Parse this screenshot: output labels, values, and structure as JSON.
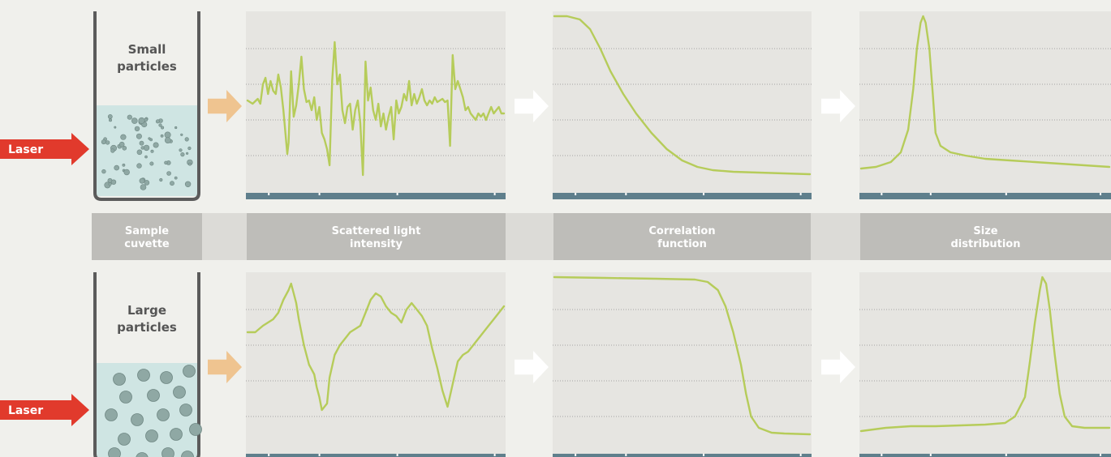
{
  "colors": {
    "background": "#f0f0ec",
    "panel": "#e6e5e1",
    "grid": "#8f8f8f",
    "axis": "#5f7f8c",
    "signal": "#b6cc5a",
    "laser": "#e13a2c",
    "input_arrow": "#efc490",
    "step_arrow": "#ffffff",
    "header": "#bebdb9",
    "header_gap": "#dcdbd7",
    "cuvette_wall": "#5b5b5b",
    "liquid": "#cfe5e3",
    "particle": "#8fa8a4"
  },
  "laser_label": "Laser",
  "rows": [
    {
      "id": "small",
      "cuvette_label": [
        "Small",
        "particles"
      ],
      "intensity_trace": [
        [
          0,
          0.48
        ],
        [
          0.02,
          0.46
        ],
        [
          0.04,
          0.49
        ],
        [
          0.05,
          0.46
        ],
        [
          0.06,
          0.58
        ],
        [
          0.07,
          0.62
        ],
        [
          0.08,
          0.52
        ],
        [
          0.09,
          0.6
        ],
        [
          0.1,
          0.54
        ],
        [
          0.11,
          0.52
        ],
        [
          0.12,
          0.64
        ],
        [
          0.13,
          0.56
        ],
        [
          0.14,
          0.42
        ],
        [
          0.155,
          0.15
        ],
        [
          0.16,
          0.22
        ],
        [
          0.17,
          0.66
        ],
        [
          0.18,
          0.38
        ],
        [
          0.19,
          0.45
        ],
        [
          0.2,
          0.58
        ],
        [
          0.21,
          0.75
        ],
        [
          0.22,
          0.55
        ],
        [
          0.23,
          0.47
        ],
        [
          0.24,
          0.48
        ],
        [
          0.25,
          0.42
        ],
        [
          0.26,
          0.5
        ],
        [
          0.27,
          0.36
        ],
        [
          0.28,
          0.44
        ],
        [
          0.29,
          0.28
        ],
        [
          0.3,
          0.24
        ],
        [
          0.31,
          0.18
        ],
        [
          0.32,
          0.08
        ],
        [
          0.33,
          0.6
        ],
        [
          0.34,
          0.84
        ],
        [
          0.35,
          0.58
        ],
        [
          0.36,
          0.64
        ],
        [
          0.37,
          0.42
        ],
        [
          0.38,
          0.34
        ],
        [
          0.39,
          0.44
        ],
        [
          0.4,
          0.46
        ],
        [
          0.41,
          0.3
        ],
        [
          0.42,
          0.42
        ],
        [
          0.43,
          0.48
        ],
        [
          0.44,
          0.34
        ],
        [
          0.45,
          0.02
        ],
        [
          0.46,
          0.72
        ],
        [
          0.47,
          0.48
        ],
        [
          0.48,
          0.56
        ],
        [
          0.49,
          0.42
        ],
        [
          0.5,
          0.36
        ],
        [
          0.51,
          0.46
        ],
        [
          0.52,
          0.32
        ],
        [
          0.53,
          0.4
        ],
        [
          0.54,
          0.3
        ],
        [
          0.55,
          0.38
        ],
        [
          0.56,
          0.44
        ],
        [
          0.57,
          0.24
        ],
        [
          0.58,
          0.48
        ],
        [
          0.59,
          0.4
        ],
        [
          0.6,
          0.44
        ],
        [
          0.61,
          0.52
        ],
        [
          0.62,
          0.48
        ],
        [
          0.63,
          0.6
        ],
        [
          0.64,
          0.45
        ],
        [
          0.65,
          0.52
        ],
        [
          0.66,
          0.46
        ],
        [
          0.67,
          0.5
        ],
        [
          0.68,
          0.55
        ],
        [
          0.69,
          0.48
        ],
        [
          0.7,
          0.45
        ],
        [
          0.71,
          0.48
        ],
        [
          0.72,
          0.46
        ],
        [
          0.73,
          0.5
        ],
        [
          0.74,
          0.47
        ],
        [
          0.75,
          0.48
        ],
        [
          0.76,
          0.49
        ],
        [
          0.77,
          0.47
        ],
        [
          0.78,
          0.48
        ],
        [
          0.79,
          0.2
        ],
        [
          0.8,
          0.76
        ],
        [
          0.81,
          0.55
        ],
        [
          0.82,
          0.6
        ],
        [
          0.83,
          0.55
        ],
        [
          0.84,
          0.5
        ],
        [
          0.85,
          0.42
        ],
        [
          0.86,
          0.44
        ],
        [
          0.87,
          0.4
        ],
        [
          0.88,
          0.38
        ],
        [
          0.89,
          0.36
        ],
        [
          0.9,
          0.4
        ],
        [
          0.91,
          0.38
        ],
        [
          0.92,
          0.4
        ],
        [
          0.93,
          0.36
        ],
        [
          0.94,
          0.4
        ],
        [
          0.95,
          0.44
        ],
        [
          0.96,
          0.4
        ],
        [
          0.97,
          0.42
        ],
        [
          0.98,
          0.44
        ],
        [
          0.99,
          0.4
        ],
        [
          1,
          0.4
        ]
      ],
      "correlation_trace": [
        [
          0,
          1
        ],
        [
          0.05,
          1
        ],
        [
          0.1,
          0.98
        ],
        [
          0.14,
          0.92
        ],
        [
          0.18,
          0.8
        ],
        [
          0.22,
          0.66
        ],
        [
          0.27,
          0.52
        ],
        [
          0.32,
          0.4
        ],
        [
          0.38,
          0.28
        ],
        [
          0.44,
          0.18
        ],
        [
          0.5,
          0.11
        ],
        [
          0.56,
          0.07
        ],
        [
          0.62,
          0.05
        ],
        [
          0.7,
          0.04
        ],
        [
          0.8,
          0.035
        ],
        [
          0.9,
          0.03
        ],
        [
          1,
          0.025
        ]
      ],
      "size_trace": [
        [
          0,
          0.06
        ],
        [
          0.06,
          0.07
        ],
        [
          0.12,
          0.1
        ],
        [
          0.16,
          0.16
        ],
        [
          0.19,
          0.3
        ],
        [
          0.21,
          0.55
        ],
        [
          0.225,
          0.8
        ],
        [
          0.24,
          0.96
        ],
        [
          0.25,
          1
        ],
        [
          0.26,
          0.96
        ],
        [
          0.275,
          0.8
        ],
        [
          0.29,
          0.5
        ],
        [
          0.3,
          0.28
        ],
        [
          0.32,
          0.2
        ],
        [
          0.36,
          0.16
        ],
        [
          0.42,
          0.14
        ],
        [
          0.5,
          0.12
        ],
        [
          0.6,
          0.11
        ],
        [
          0.7,
          0.1
        ],
        [
          0.8,
          0.09
        ],
        [
          0.9,
          0.08
        ],
        [
          1,
          0.07
        ]
      ]
    },
    {
      "id": "large",
      "cuvette_label": [
        "Large",
        "particles"
      ],
      "intensity_trace": [
        [
          0,
          0.66
        ],
        [
          0.03,
          0.66
        ],
        [
          0.06,
          0.7
        ],
        [
          0.08,
          0.72
        ],
        [
          0.1,
          0.74
        ],
        [
          0.12,
          0.78
        ],
        [
          0.14,
          0.86
        ],
        [
          0.16,
          0.92
        ],
        [
          0.17,
          0.96
        ],
        [
          0.18,
          0.9
        ],
        [
          0.19,
          0.84
        ],
        [
          0.2,
          0.74
        ],
        [
          0.22,
          0.58
        ],
        [
          0.24,
          0.46
        ],
        [
          0.26,
          0.4
        ],
        [
          0.27,
          0.32
        ],
        [
          0.28,
          0.26
        ],
        [
          0.29,
          0.18
        ],
        [
          0.3,
          0.2
        ],
        [
          0.31,
          0.22
        ],
        [
          0.32,
          0.38
        ],
        [
          0.34,
          0.52
        ],
        [
          0.36,
          0.58
        ],
        [
          0.38,
          0.62
        ],
        [
          0.4,
          0.66
        ],
        [
          0.42,
          0.68
        ],
        [
          0.44,
          0.7
        ],
        [
          0.46,
          0.78
        ],
        [
          0.48,
          0.86
        ],
        [
          0.5,
          0.9
        ],
        [
          0.52,
          0.88
        ],
        [
          0.54,
          0.82
        ],
        [
          0.56,
          0.78
        ],
        [
          0.58,
          0.76
        ],
        [
          0.6,
          0.72
        ],
        [
          0.62,
          0.8
        ],
        [
          0.64,
          0.84
        ],
        [
          0.66,
          0.8
        ],
        [
          0.68,
          0.76
        ],
        [
          0.7,
          0.7
        ],
        [
          0.72,
          0.56
        ],
        [
          0.74,
          0.44
        ],
        [
          0.76,
          0.3
        ],
        [
          0.78,
          0.2
        ],
        [
          0.8,
          0.34
        ],
        [
          0.82,
          0.48
        ],
        [
          0.84,
          0.52
        ],
        [
          0.86,
          0.54
        ],
        [
          0.88,
          0.58
        ],
        [
          0.9,
          0.62
        ],
        [
          0.92,
          0.66
        ],
        [
          0.94,
          0.7
        ],
        [
          0.96,
          0.74
        ],
        [
          0.98,
          0.78
        ],
        [
          1,
          0.82
        ]
      ],
      "correlation_trace": [
        [
          0,
          1
        ],
        [
          0.2,
          0.995
        ],
        [
          0.4,
          0.99
        ],
        [
          0.55,
          0.985
        ],
        [
          0.6,
          0.97
        ],
        [
          0.64,
          0.92
        ],
        [
          0.67,
          0.82
        ],
        [
          0.7,
          0.66
        ],
        [
          0.73,
          0.46
        ],
        [
          0.75,
          0.28
        ],
        [
          0.77,
          0.14
        ],
        [
          0.8,
          0.07
        ],
        [
          0.85,
          0.04
        ],
        [
          0.9,
          0.035
        ],
        [
          1,
          0.03
        ]
      ],
      "size_trace": [
        [
          0,
          0.05
        ],
        [
          0.1,
          0.07
        ],
        [
          0.2,
          0.08
        ],
        [
          0.3,
          0.08
        ],
        [
          0.4,
          0.085
        ],
        [
          0.5,
          0.09
        ],
        [
          0.58,
          0.1
        ],
        [
          0.62,
          0.14
        ],
        [
          0.66,
          0.26
        ],
        [
          0.68,
          0.48
        ],
        [
          0.7,
          0.72
        ],
        [
          0.72,
          0.92
        ],
        [
          0.73,
          1
        ],
        [
          0.745,
          0.96
        ],
        [
          0.76,
          0.8
        ],
        [
          0.78,
          0.52
        ],
        [
          0.8,
          0.28
        ],
        [
          0.82,
          0.14
        ],
        [
          0.85,
          0.08
        ],
        [
          0.9,
          0.07
        ],
        [
          1,
          0.07
        ]
      ]
    }
  ],
  "columns": [
    {
      "id": "cuvette",
      "header": [
        "Sample",
        "cuvette"
      ]
    },
    {
      "id": "intensity",
      "header": [
        "Scattered light",
        "intensity"
      ]
    },
    {
      "id": "correlation",
      "header": [
        "Correlation",
        "function"
      ]
    },
    {
      "id": "size",
      "header": [
        "Size",
        "distribution"
      ]
    }
  ]
}
